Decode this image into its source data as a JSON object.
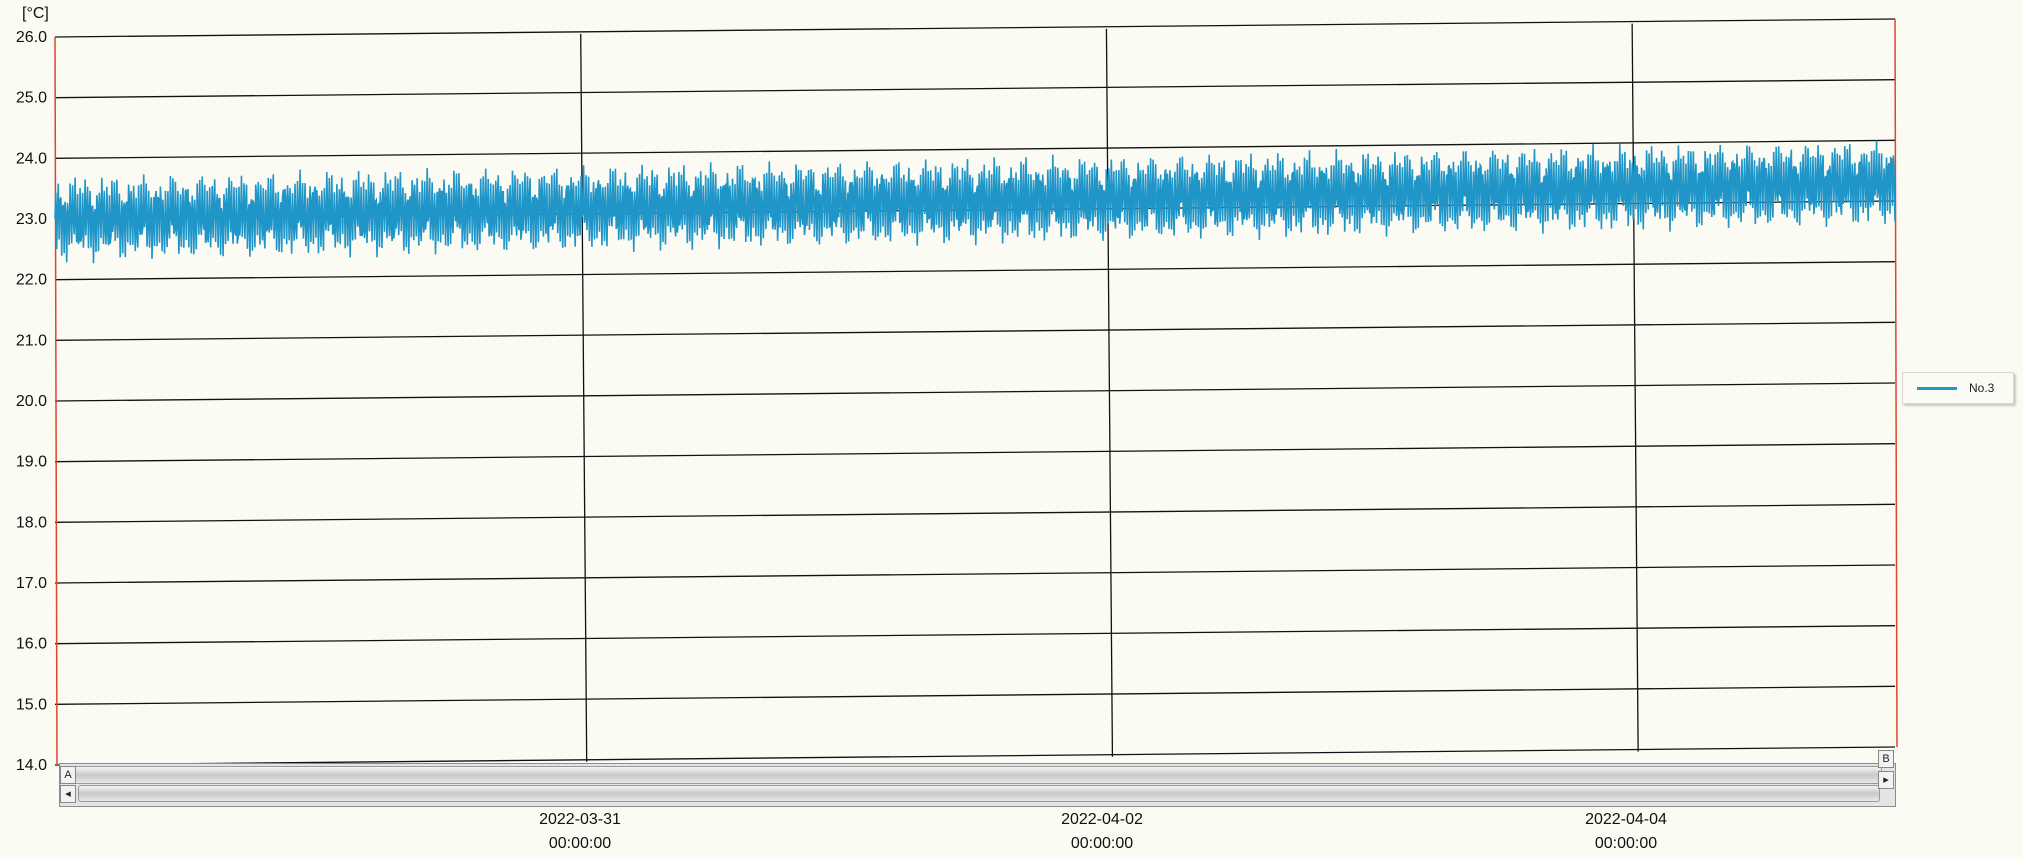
{
  "chart_data": {
    "type": "line",
    "ylabel": "[°C]",
    "ylim": [
      14.0,
      26.0
    ],
    "yticks": [
      "26.0",
      "25.0",
      "24.0",
      "23.0",
      "22.0",
      "21.0",
      "20.0",
      "19.0",
      "18.0",
      "17.0",
      "16.0",
      "15.0",
      "14.0"
    ],
    "xticks": [
      {
        "date": "2022-03-31",
        "time": "00:00:00"
      },
      {
        "date": "2022-04-02",
        "time": "00:00:00"
      },
      {
        "date": "2022-04-04",
        "time": "00:00:00"
      }
    ],
    "xlim": [
      "2022-03-29T00:00:00",
      "2022-04-05T00:00:00"
    ],
    "grid": true,
    "legend_position": "right",
    "series": [
      {
        "name": "No.3",
        "color": "#1f95c8",
        "description_of_shape": "dense oscillation",
        "x_start": "2022-03-29T00:00:00",
        "x_end": "2022-04-05T00:00:00",
        "mean_start": 23.0,
        "mean_end": 23.3,
        "min_approx": 22.2,
        "max_approx": 24.0
      }
    ]
  },
  "scrollbar": {
    "left_marker": "A",
    "right_marker": "B",
    "left_arrow": "◂",
    "right_arrow": "▸"
  }
}
